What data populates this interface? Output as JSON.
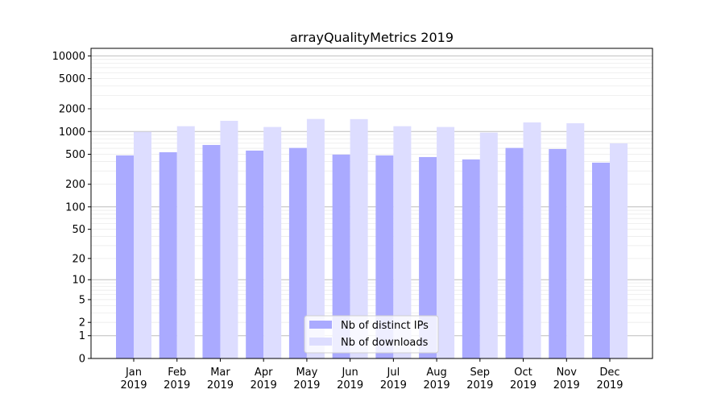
{
  "chart_data": {
    "type": "bar",
    "title": "arrayQualityMetrics 2019",
    "xlabel": "",
    "ylabel": "",
    "yscale": "symlog",
    "ylim": [
      0,
      12000
    ],
    "grid": true,
    "legend_placement": "lower center",
    "yticks": [
      0,
      1,
      2,
      5,
      10,
      20,
      50,
      100,
      200,
      500,
      1000,
      2000,
      5000,
      10000
    ],
    "categories": [
      "Jan\n2019",
      "Feb\n2019",
      "Mar\n2019",
      "Apr\n2019",
      "May\n2019",
      "Jun\n2019",
      "Jul\n2019",
      "Aug\n2019",
      "Sep\n2019",
      "Oct\n2019",
      "Nov\n2019",
      "Dec\n2019"
    ],
    "series": [
      {
        "name": "Nb of distinct IPs",
        "color": "#aaaaff",
        "values": [
          483,
          532,
          664,
          559,
          606,
          495,
          483,
          459,
          427,
          606,
          587,
          387
        ]
      },
      {
        "name": "Nb of downloads",
        "color": "#ddddff",
        "values": [
          990,
          1176,
          1386,
          1148,
          1466,
          1460,
          1176,
          1148,
          967,
          1319,
          1288,
          697
        ]
      }
    ]
  }
}
